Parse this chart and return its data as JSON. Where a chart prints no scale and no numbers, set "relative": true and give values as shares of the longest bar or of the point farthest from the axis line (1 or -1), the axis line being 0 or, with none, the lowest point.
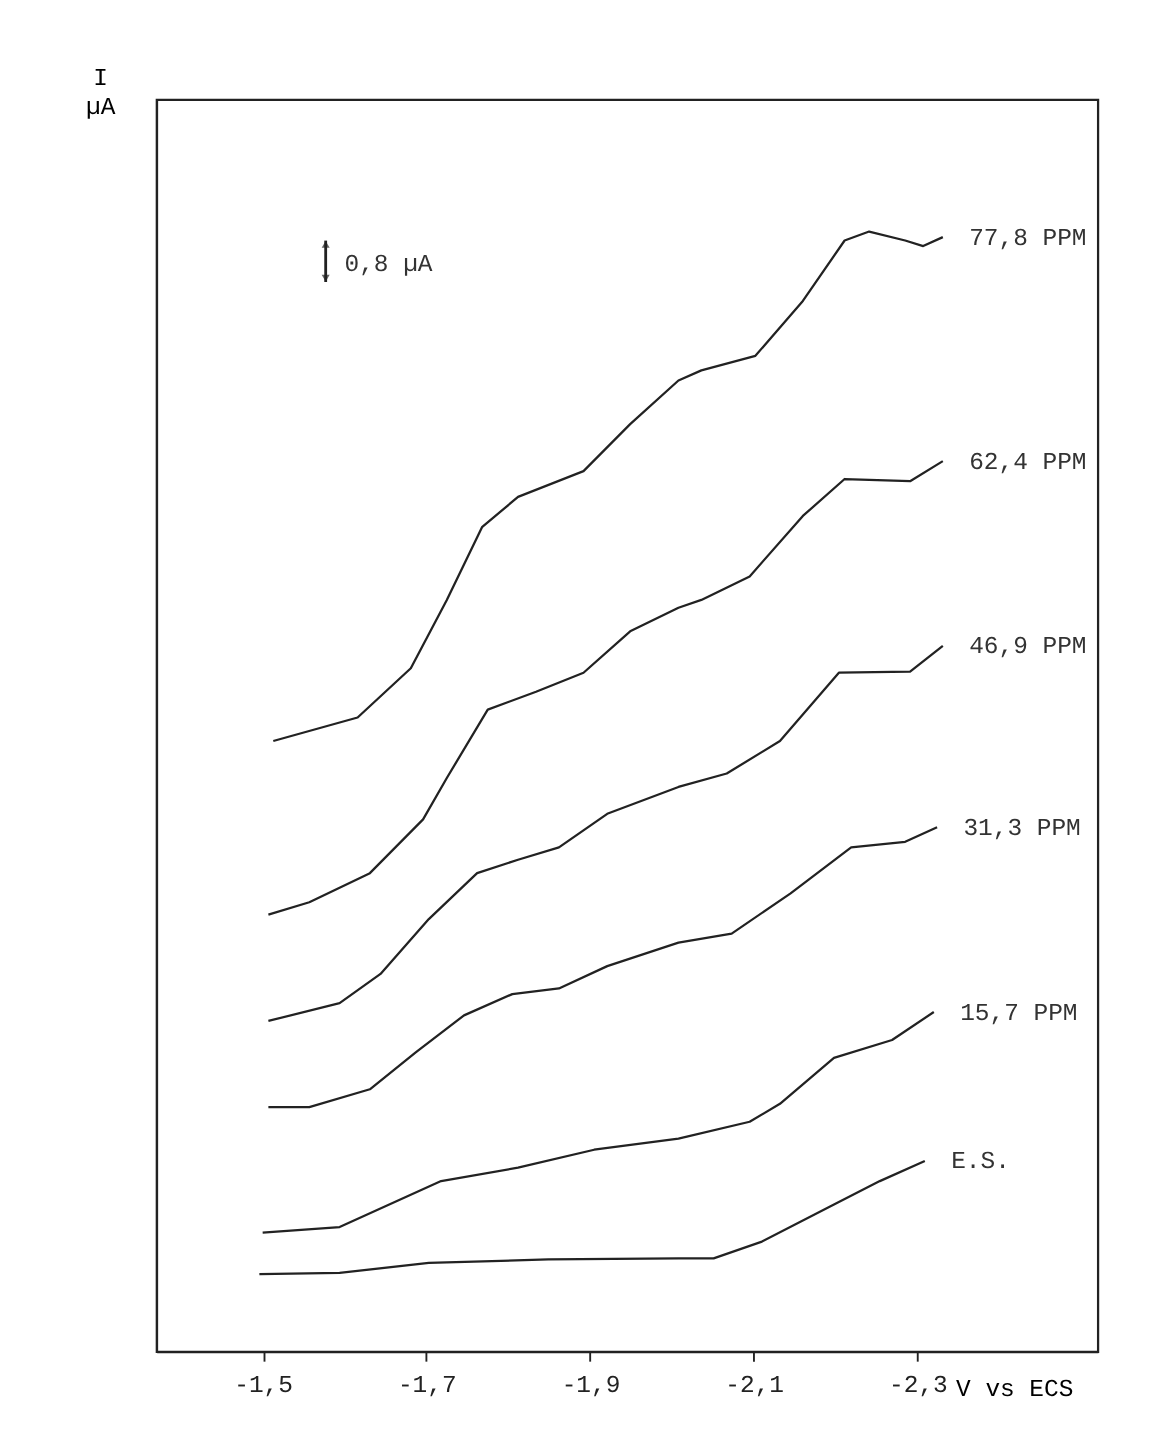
{
  "chart_data": {
    "type": "line",
    "relative": true,
    "xlabel": "V vs ECS",
    "ylabel": "I µA",
    "xlim": [
      -1.37,
      -2.52
    ],
    "xticks": [
      {
        "value": -1.5,
        "label": "-1,5"
      },
      {
        "value": -1.7,
        "label": "-1,7"
      },
      {
        "value": -1.9,
        "label": "-1,9"
      },
      {
        "value": -2.1,
        "label": "-2,1"
      },
      {
        "value": -2.3,
        "label": "-2,3"
      }
    ],
    "annotations": [
      "0,8 µA"
    ],
    "grid": false,
    "line_style": "solid",
    "series": [
      {
        "name": "77,8 PPM",
        "color": "#222222",
        "x": [
          -1.513,
          -1.616,
          -1.681,
          -1.725,
          -1.768,
          -1.812,
          -1.892,
          -1.949,
          -2.008,
          -2.036,
          -2.102,
          -2.16,
          -2.211,
          -2.241,
          -2.285,
          -2.307,
          -2.331
        ],
        "values": [
          0.545,
          0.566,
          0.61,
          0.671,
          0.736,
          0.763,
          0.786,
          0.828,
          0.867,
          0.876,
          0.889,
          0.938,
          0.992,
          1.0,
          0.992,
          0.987,
          0.995
        ]
      },
      {
        "name": "62,4 PPM",
        "color": "#222222",
        "x": [
          -1.507,
          -1.557,
          -1.631,
          -1.696,
          -1.725,
          -1.775,
          -1.834,
          -1.892,
          -1.949,
          -2.008,
          -2.036,
          -2.095,
          -2.16,
          -2.211,
          -2.291,
          -2.331
        ],
        "values": [
          0.39,
          0.401,
          0.427,
          0.475,
          0.512,
          0.573,
          0.589,
          0.606,
          0.643,
          0.664,
          0.671,
          0.692,
          0.746,
          0.779,
          0.777,
          0.795
        ]
      },
      {
        "name": "46,9 PPM",
        "color": "#222222",
        "x": [
          -1.507,
          -1.594,
          -1.644,
          -1.703,
          -1.762,
          -1.812,
          -1.862,
          -1.921,
          -2.008,
          -2.067,
          -2.132,
          -2.204,
          -2.291,
          -2.331
        ],
        "values": [
          0.295,
          0.311,
          0.337,
          0.386,
          0.427,
          0.439,
          0.45,
          0.48,
          0.504,
          0.516,
          0.545,
          0.606,
          0.607,
          0.63
        ]
      },
      {
        "name": "31,3 PPM",
        "color": "#222222",
        "x": [
          -1.507,
          -1.557,
          -1.631,
          -1.687,
          -1.746,
          -1.805,
          -1.862,
          -1.921,
          -2.008,
          -2.073,
          -2.145,
          -2.219,
          -2.285,
          -2.324
        ],
        "values": [
          0.218,
          0.218,
          0.234,
          0.267,
          0.3,
          0.319,
          0.324,
          0.344,
          0.365,
          0.373,
          0.409,
          0.45,
          0.455,
          0.468
        ]
      },
      {
        "name": "15,7 PPM",
        "color": "#222222",
        "x": [
          -1.5,
          -1.594,
          -1.718,
          -1.812,
          -1.905,
          -2.008,
          -2.095,
          -2.132,
          -2.198,
          -2.269,
          -2.32
        ],
        "values": [
          0.106,
          0.111,
          0.152,
          0.164,
          0.18,
          0.19,
          0.205,
          0.221,
          0.262,
          0.278,
          0.303
        ]
      },
      {
        "name": "E.S.",
        "color": "#222222",
        "x": [
          -1.496,
          -1.594,
          -1.703,
          -1.849,
          -2.008,
          -2.051,
          -2.11,
          -2.198,
          -2.254,
          -2.309
        ],
        "values": [
          0.069,
          0.07,
          0.079,
          0.082,
          0.083,
          0.083,
          0.098,
          0.131,
          0.152,
          0.17
        ]
      }
    ]
  }
}
